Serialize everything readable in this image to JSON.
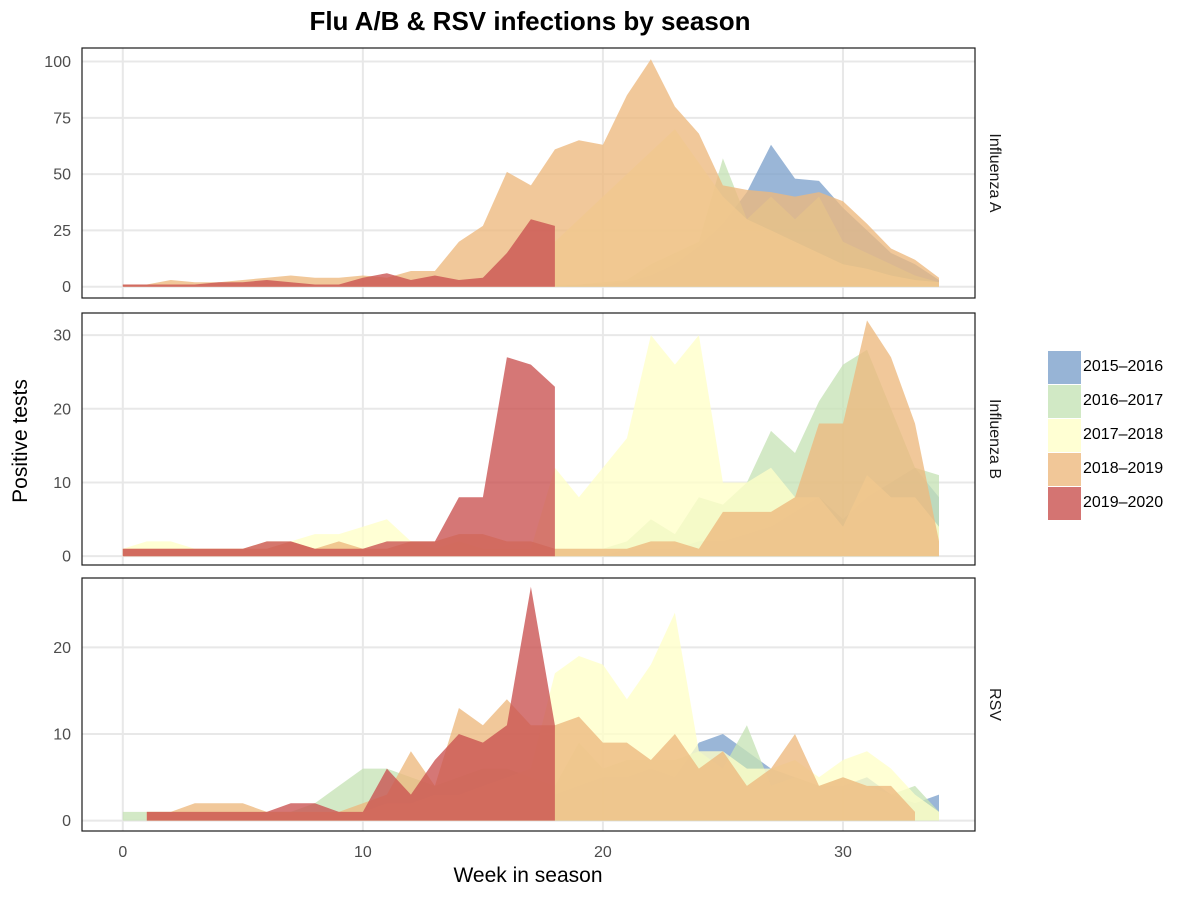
{
  "chart_data": {
    "type": "area",
    "title": "Flu A/B & RSV infections by season",
    "xlabel": "Week in season",
    "ylabel": "Positive tests",
    "xlim": [
      -1.7,
      35.5
    ],
    "x_ticks": [
      0,
      10,
      20,
      30
    ],
    "seasons": [
      "2015–2016",
      "2016–2017",
      "2017–2018",
      "2018–2019",
      "2019–2020"
    ],
    "colors": {
      "2015–2016": "#7DA1CC",
      "2016–2017": "#C6E3B6",
      "2017–2018": "#FFFFC8",
      "2018–2019": "#EDB97E",
      "2019–2020": "#C9514F"
    },
    "panels": [
      {
        "label": "Influenza A",
        "ylim": [
          -5,
          106
        ],
        "y_ticks": [
          0,
          25,
          50,
          75,
          100
        ],
        "series": [
          {
            "name": "2015–2016",
            "x": [
              18,
              19,
              20,
              21,
              22,
              23,
              24,
              25,
              26,
              27,
              28,
              29,
              30,
              31,
              32,
              33,
              34
            ],
            "values": [
              0,
              1,
              1,
              2,
              5,
              10,
              18,
              28,
              42,
              63,
              48,
              47,
              35,
              25,
              15,
              10,
              3
            ]
          },
          {
            "name": "2016–2017",
            "x": [
              18,
              19,
              20,
              21,
              22,
              23,
              24,
              25,
              26,
              27,
              28,
              29,
              30,
              31,
              32,
              33,
              34
            ],
            "values": [
              1,
              1,
              2,
              3,
              10,
              15,
              20,
              57,
              30,
              40,
              30,
              40,
              20,
              15,
              10,
              5,
              2
            ]
          },
          {
            "name": "2017–2018",
            "x": [
              18,
              19,
              20,
              21,
              22,
              23,
              24,
              25,
              26,
              27,
              28,
              29,
              30,
              31,
              32,
              33,
              34
            ],
            "values": [
              20,
              30,
              40,
              50,
              60,
              70,
              55,
              40,
              30,
              25,
              20,
              15,
              10,
              8,
              5,
              3,
              2
            ]
          },
          {
            "name": "2018–2019",
            "x": [
              0,
              1,
              2,
              3,
              4,
              5,
              6,
              7,
              8,
              9,
              10,
              11,
              12,
              13,
              14,
              15,
              16,
              17,
              18,
              19,
              20,
              21,
              22,
              23,
              24,
              25,
              26,
              27,
              28,
              29,
              30,
              31,
              32,
              33,
              34
            ],
            "values": [
              1,
              1,
              3,
              2,
              2,
              3,
              4,
              5,
              4,
              4,
              5,
              4,
              7,
              7,
              20,
              27,
              51,
              45,
              61,
              65,
              63,
              85,
              101,
              80,
              68,
              45,
              43,
              42,
              40,
              42,
              38,
              28,
              17,
              12,
              4
            ]
          },
          {
            "name": "2019–2020",
            "x": [
              0,
              1,
              2,
              3,
              4,
              5,
              6,
              7,
              8,
              9,
              10,
              11,
              12,
              13,
              14,
              15,
              16,
              17,
              18
            ],
            "values": [
              1,
              1,
              1,
              1,
              2,
              2,
              3,
              2,
              1,
              1,
              4,
              6,
              3,
              5,
              3,
              4,
              15,
              30,
              27
            ]
          }
        ]
      },
      {
        "label": "Influenza B",
        "ylim": [
          -1.2,
          33
        ],
        "y_ticks": [
          0,
          10,
          20,
          30
        ],
        "series": [
          {
            "name": "2015–2016",
            "x": [
              18,
              19,
              20,
              21,
              22,
              23,
              24,
              25,
              26,
              27,
              28,
              29,
              30,
              31,
              32,
              33,
              34
            ],
            "values": [
              0,
              0,
              0,
              1,
              1,
              1,
              2,
              2,
              3,
              4,
              6,
              8,
              5,
              8,
              10,
              12,
              8
            ]
          },
          {
            "name": "2016–2017",
            "x": [
              18,
              19,
              20,
              21,
              22,
              23,
              24,
              25,
              26,
              27,
              28,
              29,
              30,
              31,
              32,
              33,
              34
            ],
            "values": [
              1,
              1,
              1,
              2,
              5,
              3,
              8,
              7,
              10,
              17,
              14,
              21,
              26,
              28,
              20,
              12,
              11
            ]
          },
          {
            "name": "2017–2018",
            "x": [
              0,
              1,
              2,
              3,
              4,
              5,
              6,
              7,
              8,
              9,
              10,
              11,
              12,
              13,
              14,
              15,
              16,
              17,
              18,
              19,
              20,
              21,
              22,
              23,
              24,
              25,
              26,
              27,
              28,
              29,
              30,
              31,
              32,
              33,
              34
            ],
            "values": [
              1,
              2,
              2,
              1,
              1,
              1,
              2,
              2,
              3,
              3,
              4,
              5,
              2,
              1,
              2,
              1,
              1,
              1,
              12,
              8,
              12,
              16,
              30,
              26,
              30,
              10,
              10,
              12,
              8,
              8,
              4,
              11,
              8,
              8,
              4
            ]
          },
          {
            "name": "2018–2019",
            "x": [
              0,
              1,
              2,
              3,
              4,
              5,
              6,
              7,
              8,
              9,
              10,
              11,
              12,
              13,
              14,
              15,
              16,
              17,
              18,
              19,
              20,
              21,
              22,
              23,
              24,
              25,
              26,
              27,
              28,
              29,
              30,
              31,
              32,
              33,
              34
            ],
            "values": [
              1,
              1,
              1,
              1,
              1,
              1,
              1,
              2,
              1,
              2,
              1,
              1,
              2,
              2,
              3,
              3,
              2,
              2,
              1,
              1,
              1,
              1,
              2,
              2,
              1,
              6,
              6,
              6,
              8,
              18,
              18,
              32,
              27,
              18,
              2
            ]
          },
          {
            "name": "2019–2020",
            "x": [
              0,
              1,
              2,
              3,
              4,
              5,
              6,
              7,
              8,
              9,
              10,
              11,
              12,
              13,
              14,
              15,
              16,
              17,
              18
            ],
            "values": [
              1,
              1,
              1,
              1,
              1,
              1,
              2,
              2,
              1,
              1,
              1,
              2,
              2,
              2,
              8,
              8,
              27,
              26,
              23
            ]
          }
        ]
      },
      {
        "label": "RSV",
        "ylim": [
          -1.2,
          28
        ],
        "y_ticks": [
          0,
          10,
          20
        ],
        "series": [
          {
            "name": "2015–2016",
            "x": [
              18,
              19,
              20,
              21,
              22,
              23,
              24,
              25,
              26,
              27,
              28,
              29,
              30,
              31,
              32,
              33,
              34
            ],
            "values": [
              3,
              4,
              5,
              5,
              6,
              5,
              9,
              10,
              8,
              6,
              5,
              4,
              4,
              5,
              3,
              2,
              3
            ]
          },
          {
            "name": "2016–2017",
            "x": [
              0,
              1,
              2,
              3,
              4,
              5,
              6,
              7,
              8,
              9,
              10,
              11,
              12,
              13,
              14,
              15,
              16,
              17,
              18,
              19,
              20,
              21,
              22,
              23,
              24,
              25,
              26,
              27,
              28,
              29,
              30,
              31,
              32,
              33,
              34
            ],
            "values": [
              1,
              1,
              1,
              1,
              1,
              1,
              1,
              1,
              2,
              4,
              6,
              6,
              5,
              4,
              5,
              6,
              6,
              5,
              4,
              9,
              6,
              7,
              7,
              7,
              8,
              6,
              11,
              4,
              5,
              4,
              5,
              4,
              3,
              4,
              1
            ]
          },
          {
            "name": "2017–2018",
            "x": [
              1,
              2,
              3,
              4,
              5,
              6,
              7,
              8,
              9,
              10,
              11,
              12,
              13,
              14,
              15,
              16,
              17,
              18,
              19,
              20,
              21,
              22,
              23,
              24,
              25,
              26,
              27,
              28,
              29,
              30,
              31,
              32,
              33,
              34
            ],
            "values": [
              1,
              1,
              1,
              1,
              1,
              1,
              1,
              1,
              1,
              1,
              2,
              2,
              3,
              3,
              4,
              5,
              6,
              17,
              19,
              18,
              14,
              18,
              24,
              8,
              8,
              6,
              6,
              7,
              5,
              7,
              8,
              6,
              3,
              1
            ]
          },
          {
            "name": "2018–2019",
            "x": [
              1,
              2,
              3,
              4,
              5,
              6,
              7,
              8,
              9,
              10,
              11,
              12,
              13,
              14,
              15,
              16,
              17,
              18,
              19,
              20,
              21,
              22,
              23,
              24,
              25,
              26,
              27,
              28,
              29,
              30,
              31,
              32,
              33
            ],
            "values": [
              1,
              1,
              2,
              2,
              2,
              1,
              1,
              1,
              1,
              2,
              3,
              8,
              4,
              13,
              11,
              14,
              11,
              11,
              12,
              9,
              9,
              7,
              10,
              6,
              8,
              4,
              6,
              10,
              4,
              5,
              4,
              4,
              1
            ]
          },
          {
            "name": "2019–2020",
            "x": [
              1,
              2,
              3,
              4,
              5,
              6,
              7,
              8,
              9,
              10,
              11,
              12,
              13,
              14,
              15,
              16,
              17,
              18
            ],
            "values": [
              1,
              1,
              1,
              1,
              1,
              1,
              2,
              2,
              1,
              1,
              6,
              3,
              7,
              10,
              9,
              11,
              27,
              11
            ]
          }
        ]
      }
    ]
  }
}
